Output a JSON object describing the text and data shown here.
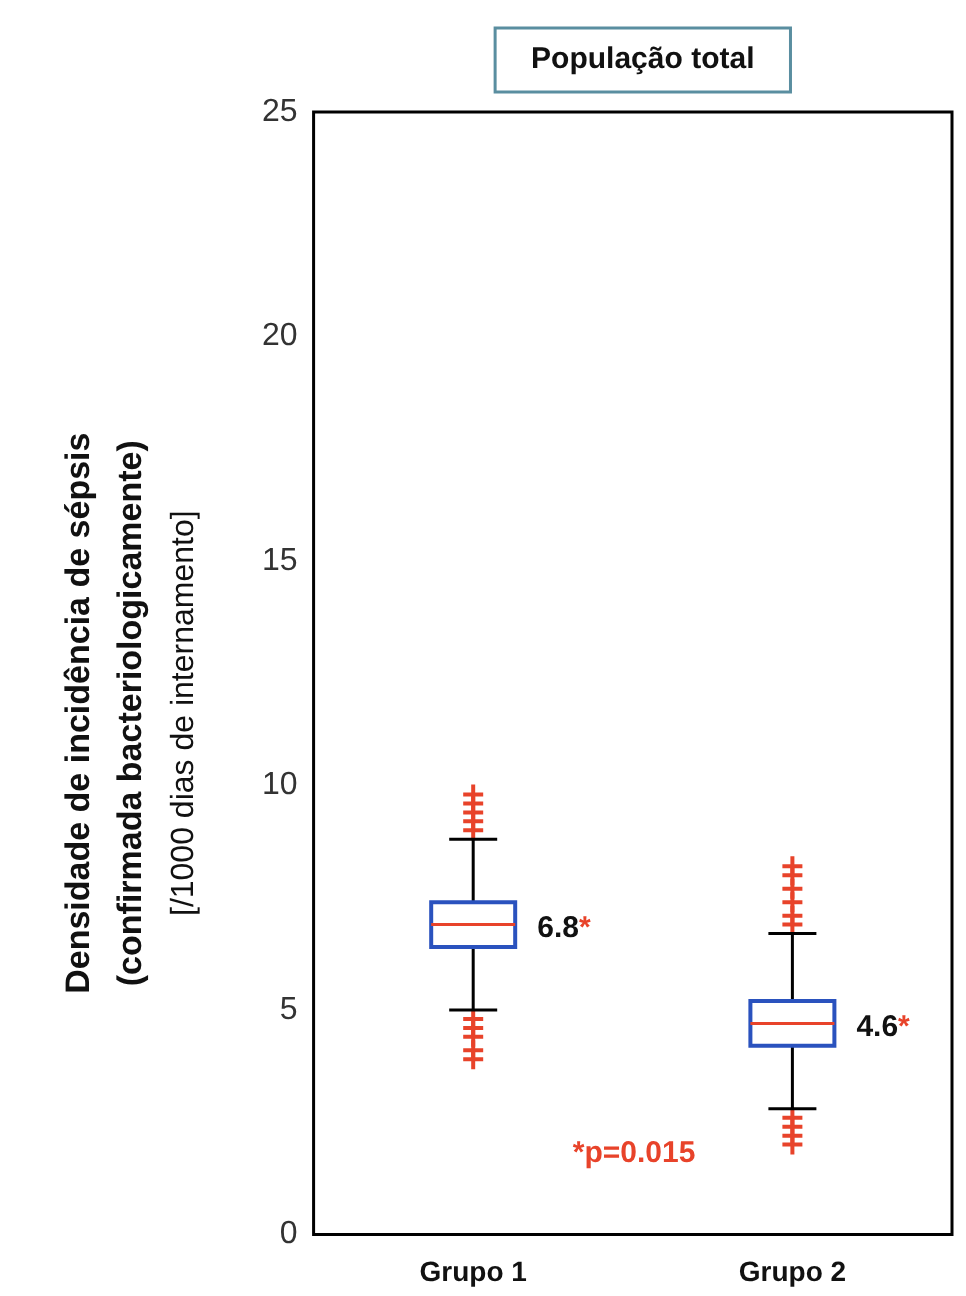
{
  "chart_data": {
    "type": "box",
    "title": "População total",
    "ylabel": "Densidade de incidência de sépsis\n(confirmada bacteriologicamente)\n[/1000 dias de internamento]",
    "categories": [
      "Grupo 1",
      "Grupo 2"
    ],
    "boxes": [
      {
        "low": 5.0,
        "q1": 6.4,
        "median": 6.9,
        "q3": 7.4,
        "high": 8.8,
        "outliers": [
          9.0,
          9.2,
          9.4,
          9.6,
          9.8,
          4.8,
          4.6,
          4.4,
          4.1,
          3.9
        ]
      },
      {
        "low": 2.8,
        "q1": 4.2,
        "median": 4.7,
        "q3": 5.2,
        "high": 6.7,
        "outliers": [
          6.9,
          7.1,
          7.4,
          7.7,
          8.0,
          8.2,
          2.6,
          2.4,
          2.2,
          2.0
        ]
      }
    ],
    "ylim": [
      0,
      25
    ],
    "yticks": [
      0,
      5,
      10,
      15,
      20,
      25
    ],
    "grid": false,
    "annotations": [
      {
        "text": "6.8*",
        "x": "Grupo 1",
        "y": 6.8
      },
      {
        "text": "4.6*",
        "x": "Grupo 2",
        "y": 4.6
      },
      "*p=0.015"
    ]
  }
}
